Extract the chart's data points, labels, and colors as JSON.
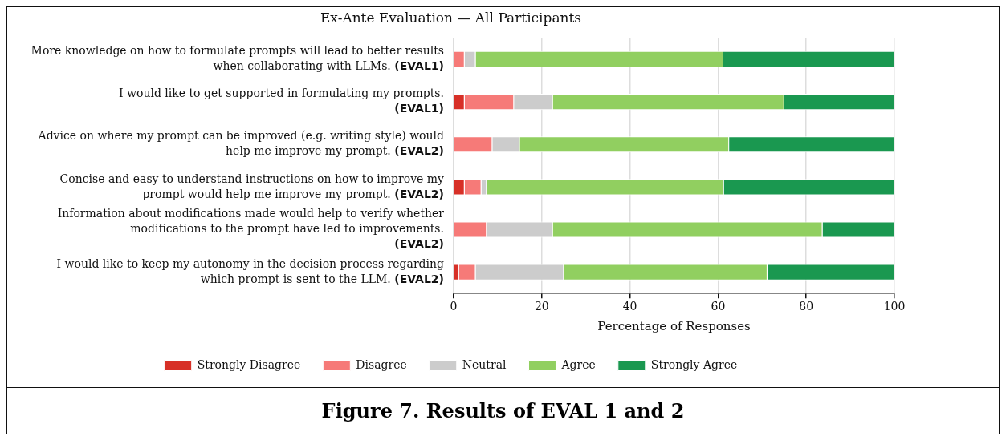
{
  "chart_data": {
    "type": "bar",
    "orientation": "horizontal",
    "stacked": true,
    "title": "Ex-Ante Evaluation — All Participants",
    "xlabel": "Percentage of Responses",
    "categories": [
      "More knowledge on how to formulate prompts will lead to better results\nwhen collaborating with LLMs. (EVAL1)",
      "I would like to get supported in formulating my prompts.\n(EVAL1)",
      "Advice on where my prompt can be improved (e.g. writing style) would\nhelp me improve my prompt. (EVAL2)",
      "Concise and easy to understand instructions on how to improve my\nprompt would help me improve my prompt. (EVAL2)",
      "Information about modifications made would help to verify whether\nmodifications to the prompt have led to improvements.\n(EVAL2)",
      "I would like to keep my autonomy in the decision process regarding\nwhich prompt is sent to the LLM. (EVAL2)"
    ],
    "series": [
      {
        "name": "Strongly Disagree",
        "color": "#d73027",
        "values": [
          0,
          2.5,
          0,
          2.5,
          0,
          1.2
        ]
      },
      {
        "name": "Disagree",
        "color": "#f67a78",
        "values": [
          2.5,
          11.2,
          8.8,
          3.8,
          7.5,
          3.8
        ]
      },
      {
        "name": "Neutral",
        "color": "#cccccc",
        "values": [
          2.5,
          8.8,
          6.2,
          1.2,
          15,
          20
        ]
      },
      {
        "name": "Agree",
        "color": "#91cf60",
        "values": [
          56.2,
          52.5,
          47.5,
          53.8,
          61.2,
          46.2
        ]
      },
      {
        "name": "Strongly Agree",
        "color": "#1a9850",
        "values": [
          38.8,
          25,
          37.5,
          38.7,
          16.3,
          28.8
        ]
      }
    ],
    "xlim": [
      0,
      100
    ],
    "xticks": [
      0,
      20,
      40,
      60,
      80,
      100
    ],
    "grid": "x",
    "legend": "bottom",
    "annotations": [
      "Figure 7.  Results of EVAL 1 and 2"
    ]
  }
}
